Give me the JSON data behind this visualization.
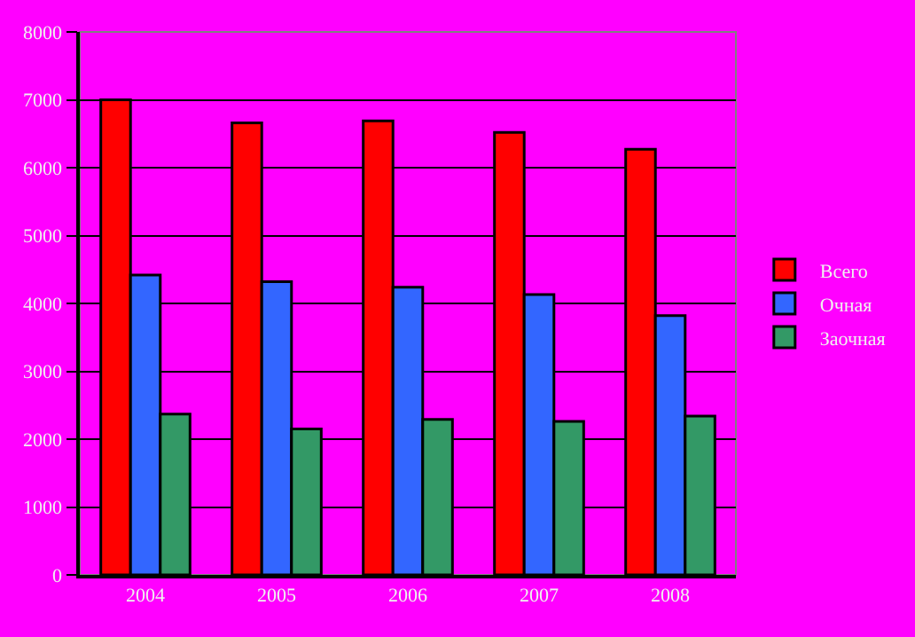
{
  "chart_data": {
    "type": "bar",
    "categories": [
      "2004",
      "2005",
      "2006",
      "2007",
      "2008"
    ],
    "series": [
      {
        "name": "Всего",
        "color": "#ff0000",
        "values": [
          7000,
          6660,
          6690,
          6520,
          6270
        ]
      },
      {
        "name": "Очная",
        "color": "#3366ff",
        "values": [
          4420,
          4320,
          4240,
          4130,
          3820
        ]
      },
      {
        "name": "Заочная",
        "color": "#339966",
        "values": [
          2370,
          2150,
          2290,
          2260,
          2340
        ]
      }
    ],
    "ylim": [
      0,
      8000
    ],
    "yticks": [
      0,
      1000,
      2000,
      3000,
      4000,
      5000,
      6000,
      7000,
      8000
    ],
    "grid": "y",
    "legend": "right"
  }
}
